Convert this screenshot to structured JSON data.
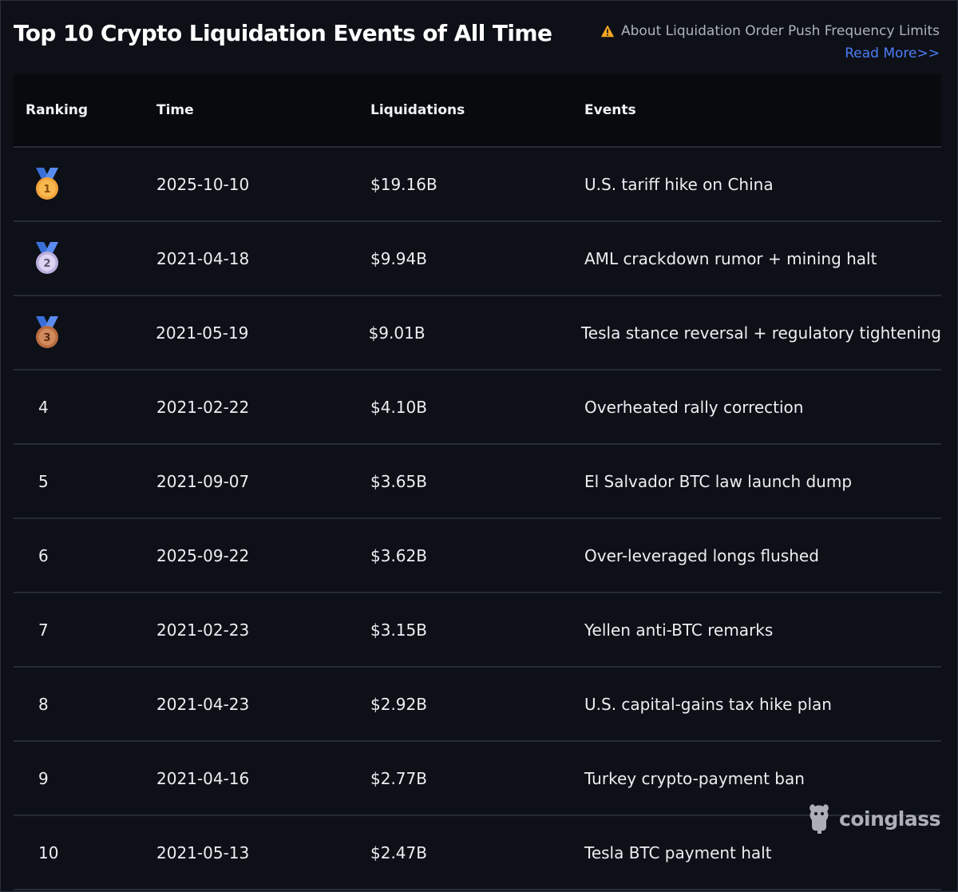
{
  "title": "Top 10 Crypto Liquidation Events of All Time",
  "notice": {
    "icon": "warning-icon",
    "text": "About Liquidation Order Push Frequency Limits",
    "link_label": "Read More>>"
  },
  "table": {
    "headers": [
      "Ranking",
      "Time",
      "Liquidations",
      "Events"
    ],
    "rows": [
      {
        "rank": "1",
        "medal": "gold-medal-icon",
        "time": "2025-10-10",
        "liquidations": "$19.16B",
        "event": "U.S. tariff hike on China"
      },
      {
        "rank": "2",
        "medal": "silver-medal-icon",
        "time": "2021-04-18",
        "liquidations": "$9.94B",
        "event": "AML crackdown rumor + mining halt"
      },
      {
        "rank": "3",
        "medal": "bronze-medal-icon",
        "time": "2021-05-19",
        "liquidations": "$9.01B",
        "event": "Tesla stance reversal + regulatory tightening"
      },
      {
        "rank": "4",
        "time": "2021-02-22",
        "liquidations": "$4.10B",
        "event": "Overheated rally correction"
      },
      {
        "rank": "5",
        "time": "2021-09-07",
        "liquidations": "$3.65B",
        "event": "El Salvador BTC law launch dump"
      },
      {
        "rank": "6",
        "time": "2025-09-22",
        "liquidations": "$3.62B",
        "event": "Over-leveraged longs flushed"
      },
      {
        "rank": "7",
        "time": "2021-02-23",
        "liquidations": "$3.15B",
        "event": "Yellen anti-BTC remarks"
      },
      {
        "rank": "8",
        "time": "2021-04-23",
        "liquidations": "$2.92B",
        "event": "U.S. capital-gains tax hike plan"
      },
      {
        "rank": "9",
        "time": "2021-04-16",
        "liquidations": "$2.77B",
        "event": "Turkey crypto-payment ban"
      },
      {
        "rank": "10",
        "time": "2021-05-13",
        "liquidations": "$2.47B",
        "event": "Tesla BTC payment halt"
      }
    ]
  },
  "watermark": {
    "icon": "coinglass-logo-icon",
    "text": "coinglass"
  },
  "colors": {
    "background": "#0d1017",
    "header_bg": "#080a0e",
    "divider": "#262b35",
    "link": "#4d7ef5",
    "warning": "#f5a623",
    "gold": "#f2a33a",
    "silver": "#cfc6e8",
    "bronze": "#c47a4e",
    "ribbon": "#3a6fd8"
  }
}
